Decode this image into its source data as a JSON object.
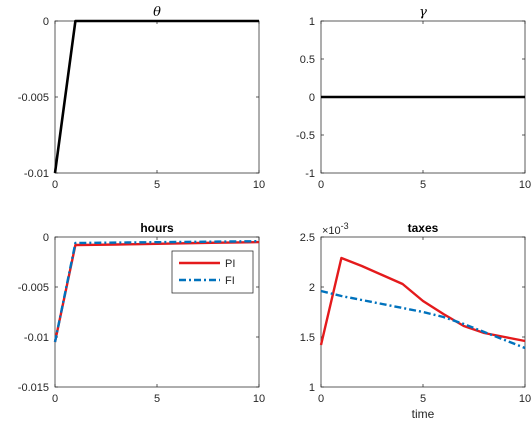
{
  "colors": {
    "PI": "#E41A1C",
    "FI": "#0072BD",
    "single": "#000000"
  },
  "chart_data": [
    {
      "type": "line",
      "title": "θ",
      "title_style": "greek-italic",
      "xlabel": "",
      "ylabel": "",
      "xlim": [
        0,
        10
      ],
      "ylim": [
        -0.01,
        0
      ],
      "xticks": [
        "0",
        "5",
        "10"
      ],
      "yticks": [
        "-0.01",
        "-0.005",
        "0"
      ],
      "series": [
        {
          "x": [
            0,
            1,
            2,
            3,
            4,
            5,
            6,
            7,
            8,
            9,
            10
          ],
          "values": [
            -0.01,
            0,
            0,
            0,
            0,
            0,
            0,
            0,
            0,
            0,
            0
          ]
        }
      ]
    },
    {
      "type": "line",
      "title": "γ",
      "title_style": "greek-italic",
      "xlabel": "",
      "ylabel": "",
      "xlim": [
        0,
        10
      ],
      "ylim": [
        -1,
        1
      ],
      "xticks": [
        "0",
        "5",
        "10"
      ],
      "yticks": [
        "-1",
        "-0.5",
        "0",
        "0.5",
        "1"
      ],
      "series": [
        {
          "x": [
            0,
            1,
            2,
            3,
            4,
            5,
            6,
            7,
            8,
            9,
            10
          ],
          "values": [
            0,
            0,
            0,
            0,
            0,
            0,
            0,
            0,
            0,
            0,
            0
          ]
        }
      ]
    },
    {
      "type": "line",
      "title": "hours",
      "xlabel": "",
      "ylabel": "",
      "xlim": [
        0,
        10
      ],
      "ylim": [
        -0.015,
        0
      ],
      "xticks": [
        "0",
        "5",
        "10"
      ],
      "yticks": [
        "-0.015",
        "-0.01",
        "-0.005",
        "0"
      ],
      "legend": {
        "placement": "top-right",
        "entries": [
          "PI",
          "FI"
        ]
      },
      "series": [
        {
          "name": "PI",
          "x": [
            0,
            1,
            2,
            3,
            4,
            5,
            6,
            7,
            8,
            9,
            10
          ],
          "values": [
            -0.0105,
            -0.0008,
            -0.00078,
            -0.00075,
            -0.00072,
            -0.00068,
            -0.00064,
            -0.0006,
            -0.00057,
            -0.00054,
            -0.00051
          ]
        },
        {
          "name": "FI",
          "x": [
            0,
            1,
            2,
            3,
            4,
            5,
            6,
            7,
            8,
            9,
            10
          ],
          "values": [
            -0.0105,
            -0.0006,
            -0.00058,
            -0.00056,
            -0.00054,
            -0.00052,
            -0.0005,
            -0.00048,
            -0.00046,
            -0.00044,
            -0.00042
          ]
        }
      ]
    },
    {
      "type": "line",
      "title": "taxes",
      "xlabel": "time",
      "ylabel": "",
      "exponent": "×10^-3",
      "exponent_base": "×10",
      "exponent_power": "-3",
      "xlim": [
        0,
        10
      ],
      "ylim": [
        1,
        2.5
      ],
      "xticks": [
        "0",
        "5",
        "10"
      ],
      "yticks": [
        "1",
        "1.5",
        "2",
        "2.5"
      ],
      "series": [
        {
          "name": "PI",
          "x": [
            0,
            1,
            2,
            3,
            4,
            5,
            6,
            7,
            8,
            9,
            10
          ],
          "values": [
            1.42,
            2.29,
            2.21,
            2.12,
            2.03,
            1.86,
            1.73,
            1.61,
            1.54,
            1.5,
            1.46
          ]
        },
        {
          "name": "FI",
          "x": [
            0,
            1,
            2,
            3,
            4,
            5,
            6,
            7,
            8,
            9,
            10
          ],
          "values": [
            1.96,
            1.91,
            1.87,
            1.83,
            1.79,
            1.75,
            1.7,
            1.63,
            1.55,
            1.47,
            1.39
          ]
        }
      ]
    }
  ]
}
